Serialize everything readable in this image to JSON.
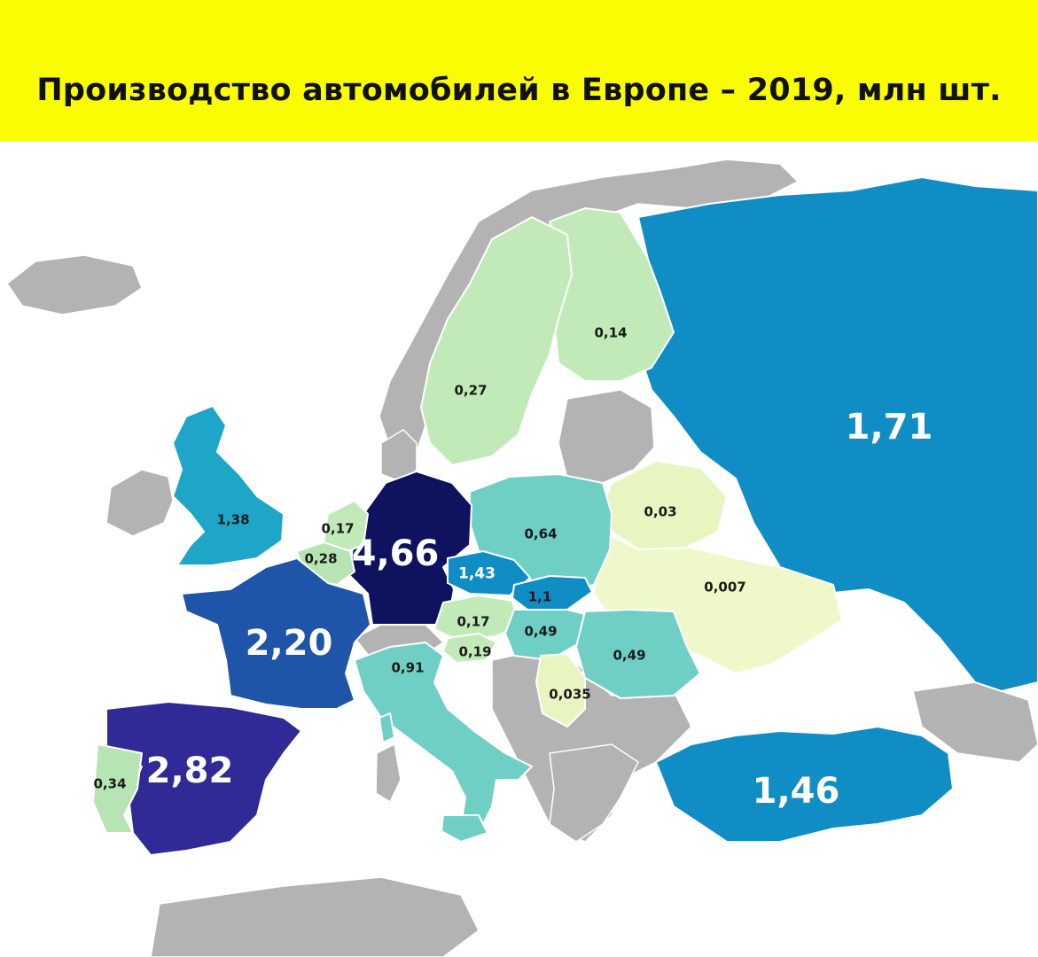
{
  "title": "Производство автомобилей в Европе – 2019, млн шт.",
  "colors": {
    "header_bg": "#fafc00",
    "other_land": "#b3b3b3",
    "scale": [
      "#dff5c2",
      "#c2eab8",
      "#9fdcbc",
      "#6fcfc4",
      "#38b8cc",
      "#0f8dc4",
      "#1e55a8",
      "#2f2a96",
      "#0f125e"
    ]
  },
  "countries": [
    {
      "id": "russia",
      "name": "Россия",
      "value": "1,71",
      "color": "#0f8dc4"
    },
    {
      "id": "turkey",
      "name": "Турция",
      "value": "1,46",
      "color": "#0f8dc4"
    },
    {
      "id": "germany",
      "name": "Германия",
      "value": "4,66",
      "color": "#0f125e"
    },
    {
      "id": "spain",
      "name": "Испания",
      "value": "2,82",
      "color": "#2f2a96"
    },
    {
      "id": "france",
      "name": "Франция",
      "value": "2,20",
      "color": "#1e55a8"
    },
    {
      "id": "uk",
      "name": "Великобритания",
      "value": "1,38",
      "color": "#1ea6c8"
    },
    {
      "id": "czech",
      "name": "Чехия",
      "value": "1,43",
      "color": "#0f8dc4"
    },
    {
      "id": "slovakia",
      "name": "Словакия",
      "value": "1,1",
      "color": "#0f8dc4"
    },
    {
      "id": "italy",
      "name": "Италия",
      "value": "0,91",
      "color": "#6fcfc4"
    },
    {
      "id": "poland",
      "name": "Польша",
      "value": "0,64",
      "color": "#6fcfc4"
    },
    {
      "id": "romania",
      "name": "Румыния",
      "value": "0,49",
      "color": "#6fcfc4"
    },
    {
      "id": "hungary",
      "name": "Венгрия",
      "value": "0,49",
      "color": "#6fcfc4"
    },
    {
      "id": "portugal",
      "name": "Португалия",
      "value": "0,34",
      "color": "#b7e4b3"
    },
    {
      "id": "belgium",
      "name": "Бельгия",
      "value": "0,28",
      "color": "#b7e4b3"
    },
    {
      "id": "sweden",
      "name": "Швеция",
      "value": "0,27",
      "color": "#c2eab8"
    },
    {
      "id": "slovenia",
      "name": "Словения",
      "value": "0,19",
      "color": "#c2eab8"
    },
    {
      "id": "netherlands",
      "name": "Нидерланды",
      "value": "0,17",
      "color": "#c2eab8"
    },
    {
      "id": "austria",
      "name": "Австрия",
      "value": "0,17",
      "color": "#c2eab8"
    },
    {
      "id": "finland",
      "name": "Финляндия",
      "value": "0,14",
      "color": "#c2eab8"
    },
    {
      "id": "serbia",
      "name": "Сербия",
      "value": "0,035",
      "color": "#e8f5c0"
    },
    {
      "id": "belarus",
      "name": "Беларусь",
      "value": "0,03",
      "color": "#e8f5c0"
    },
    {
      "id": "ukraine",
      "name": "Украина",
      "value": "0,007",
      "color": "#eef8c8"
    }
  ]
}
